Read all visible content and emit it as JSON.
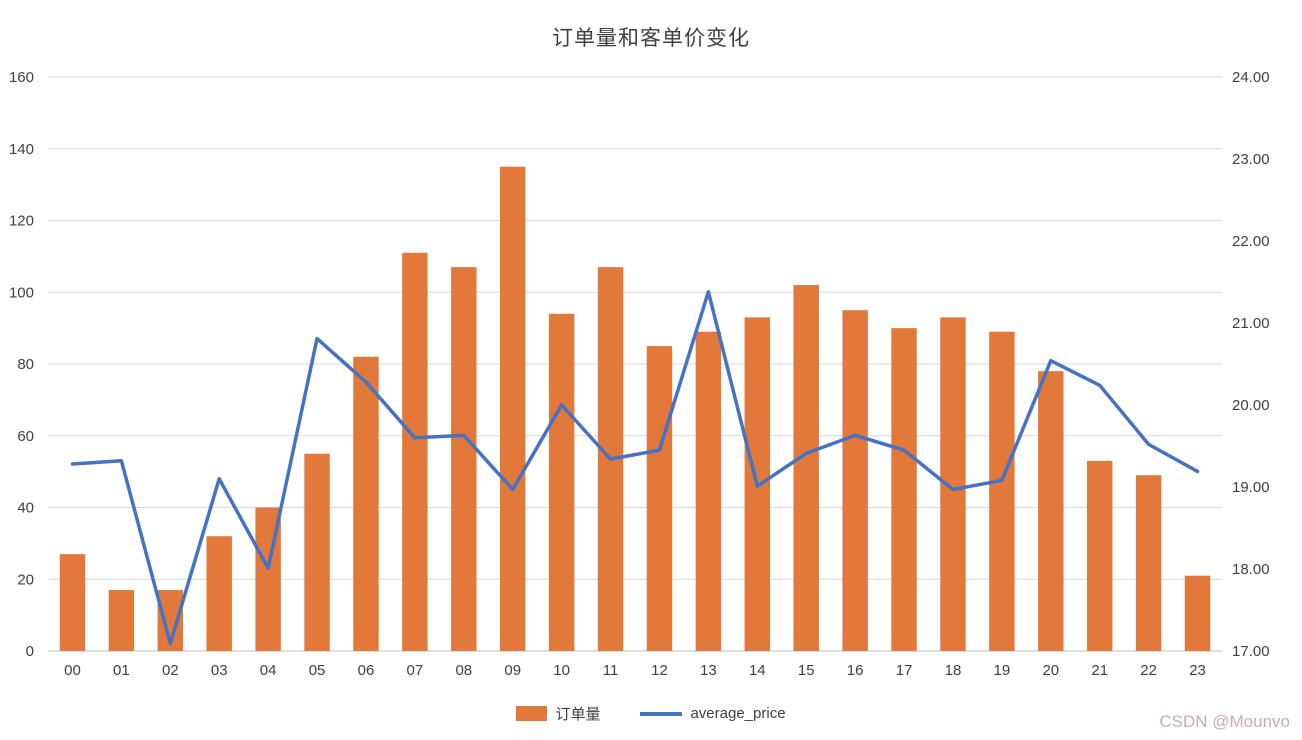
{
  "title": "订单量和客单价变化",
  "watermark": "CSDN @Mounvo",
  "legend": {
    "bar_label": "订单量",
    "line_label": "average_price"
  },
  "colors": {
    "bar": "#E2793B",
    "line": "#4472C4",
    "grid": "#D9D9D9",
    "axis_line": "#BFBFBF",
    "axis_text": "#404040",
    "title_text": "#404040",
    "watermark": "#C9ADAD",
    "background": "#FFFFFF"
  },
  "chart_data": {
    "type": "combo",
    "title": "订单量和客单价变化",
    "categories": [
      "00",
      "01",
      "02",
      "03",
      "04",
      "05",
      "06",
      "07",
      "08",
      "09",
      "10",
      "11",
      "12",
      "13",
      "14",
      "15",
      "16",
      "17",
      "18",
      "19",
      "20",
      "21",
      "22",
      "23"
    ],
    "series": [
      {
        "name": "订单量",
        "type": "bar",
        "axis": "left",
        "values": [
          27,
          17,
          17,
          32,
          40,
          55,
          82,
          111,
          107,
          135,
          94,
          107,
          85,
          89,
          93,
          102,
          95,
          90,
          93,
          89,
          78,
          53,
          49,
          21
        ]
      },
      {
        "name": "average_price",
        "type": "line",
        "axis": "right",
        "values": [
          19.28,
          19.32,
          17.09,
          19.1,
          18.01,
          20.81,
          20.28,
          19.6,
          19.63,
          18.97,
          20.0,
          19.34,
          19.45,
          21.38,
          19.01,
          19.41,
          19.63,
          19.45,
          18.97,
          19.08,
          20.54,
          20.24,
          19.52,
          19.19
        ]
      }
    ],
    "left_axis": {
      "min": 0,
      "max": 160,
      "step": 20,
      "labels": [
        "0",
        "20",
        "40",
        "60",
        "80",
        "100",
        "120",
        "140",
        "160"
      ]
    },
    "right_axis": {
      "min": 17,
      "max": 24,
      "step": 1,
      "labels": [
        "17.00",
        "18.00",
        "19.00",
        "20.00",
        "21.00",
        "22.00",
        "23.00",
        "24.00"
      ]
    },
    "grid": true,
    "legend_position": "bottom"
  }
}
